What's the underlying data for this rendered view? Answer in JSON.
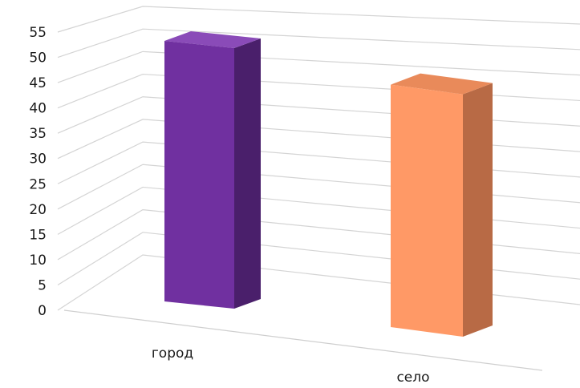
{
  "chart_data": {
    "type": "bar",
    "categories": [
      "город",
      "село"
    ],
    "values": [
      50,
      48
    ],
    "ylim": [
      0,
      55
    ],
    "yticks": [
      0,
      5,
      10,
      15,
      20,
      25,
      30,
      35,
      40,
      45,
      50,
      55
    ],
    "grid": true,
    "legend": "none",
    "colors": {
      "город": {
        "front": "#7030a0",
        "side": "#4a1f6b",
        "top": "#8a4bb8"
      },
      "село": {
        "front": "#ff9966",
        "side": "#b86a45",
        "top": "#e98a5a"
      }
    }
  }
}
